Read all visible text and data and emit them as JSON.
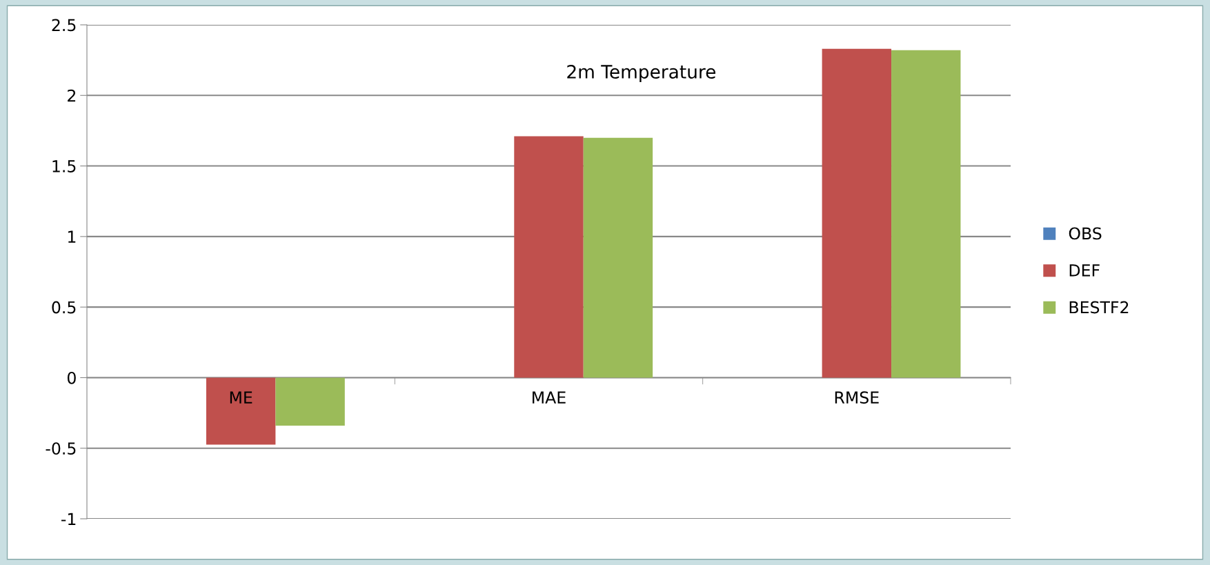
{
  "chart_data": {
    "type": "bar",
    "title": "2m Temperature",
    "categories": [
      "ME",
      "MAE",
      "RMSE"
    ],
    "series": [
      {
        "name": "OBS",
        "color": "#4f81bd",
        "values": [
          null,
          null,
          null
        ]
      },
      {
        "name": "DEF",
        "color": "#c0504d",
        "values": [
          -0.475,
          1.71,
          2.33
        ]
      },
      {
        "name": "BESTF2",
        "color": "#9bbb59",
        "values": [
          -0.34,
          1.7,
          2.32
        ]
      }
    ],
    "ylim": [
      -1,
      2.5
    ],
    "yticks": [
      -1,
      -0.5,
      0,
      0.5,
      1,
      1.5,
      2,
      2.5
    ],
    "grid": "y",
    "legend": "right"
  }
}
